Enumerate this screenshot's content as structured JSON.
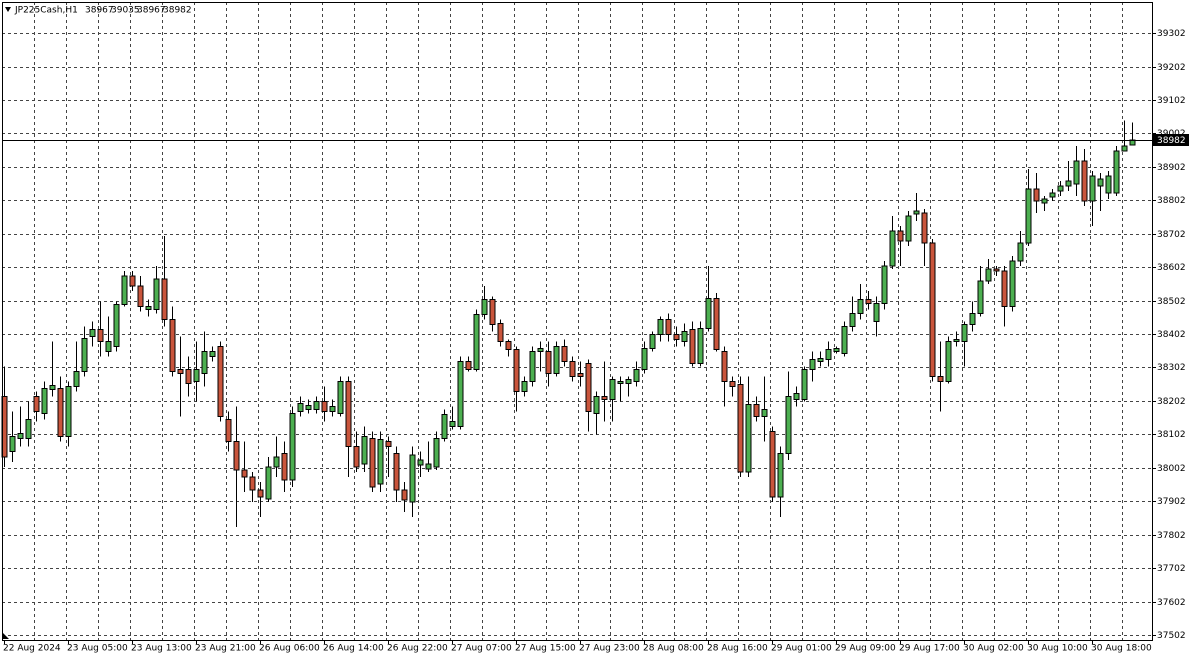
{
  "chart_data": {
    "type": "candlestick",
    "title": "JP225Cash,H1",
    "up_color": "#4caf50",
    "down_color": "#c9553c",
    "grid": true,
    "categories": [
      "22 Aug 2024",
      null,
      null,
      null,
      null,
      null,
      null,
      null,
      "23 Aug 05:00",
      null,
      null,
      null,
      null,
      null,
      null,
      null,
      "23 Aug 13:00",
      null,
      null,
      null,
      null,
      null,
      null,
      null,
      "23 Aug 21:00",
      null,
      null,
      null,
      null,
      null,
      null,
      null,
      "26 Aug 06:00",
      null,
      null,
      null,
      null,
      null,
      null,
      null,
      "26 Aug 14:00",
      null,
      null,
      null,
      null,
      null,
      null,
      null,
      "26 Aug 22:00",
      null,
      null,
      null,
      null,
      null,
      null,
      null,
      "27 Aug 07:00",
      null,
      null,
      null,
      null,
      null,
      null,
      null,
      "27 Aug 15:00",
      null,
      null,
      null,
      null,
      null,
      null,
      null,
      "27 Aug 23:00",
      null,
      null,
      null,
      null,
      null,
      null,
      null,
      "28 Aug 08:00",
      null,
      null,
      null,
      null,
      null,
      null,
      null,
      "28 Aug 16:00",
      null,
      null,
      null,
      null,
      null,
      null,
      null,
      "29 Aug 01:00",
      null,
      null,
      null,
      null,
      null,
      null,
      null,
      "29 Aug 09:00",
      null,
      null,
      null,
      null,
      null,
      null,
      null,
      "29 Aug 17:00",
      null,
      null,
      null,
      null,
      null,
      null,
      null,
      "30 Aug 02:00",
      null,
      null,
      null,
      null,
      null,
      null,
      null,
      "30 Aug 10:00",
      null,
      null,
      null,
      null,
      null,
      null,
      null,
      "30 Aug 18:00",
      null,
      null,
      null,
      null,
      null
    ],
    "open": [
      38215,
      38050,
      38089,
      38089,
      38215,
      38164,
      38236,
      38239,
      38095,
      38245,
      38290,
      38395,
      38416,
      38350,
      38365,
      38491,
      38575,
      38545,
      38476,
      38476,
      38566,
      38446,
      38296,
      38296,
      38260,
      38284,
      38335,
      38365,
      38146,
      38080,
      37996,
      37975,
      37936,
      37909,
      38005,
      38044,
      37966,
      38170,
      38176,
      38176,
      38200,
      38170,
      38164,
      38260,
      38065,
      38014,
      38089,
      37954,
      38080,
      38044,
      37936,
      37900,
      38011,
      37998,
      38005,
      38089,
      38125,
      38125,
      38320,
      38296,
      38461,
      38506,
      38434,
      38380,
      38356,
      38230,
      38260,
      38350,
      38350,
      38284,
      38365,
      38320,
      38284,
      38314,
      38164,
      38215,
      38206,
      38254,
      38254,
      38260,
      38296,
      38359,
      38401,
      38446,
      38401,
      38380,
      38416,
      38314,
      38419,
      38509,
      38350,
      38260,
      38251,
      37990,
      38191,
      38155,
      38110,
      37915,
      38044,
      38206,
      38206,
      38296,
      38320,
      38326,
      38350,
      38344,
      38425,
      38464,
      38506,
      38440,
      38494,
      38605,
      38710,
      38680,
      38761,
      38764,
      38674,
      38275,
      38260,
      38380,
      38380,
      38431,
      38464,
      38560,
      38596,
      38590,
      38485,
      38620,
      38674,
      38836,
      38794,
      38812,
      38830,
      38845,
      38851,
      38920,
      38800,
      38845,
      38824,
      38824,
      38950,
      38967
    ],
    "high": [
      38305,
      38170,
      38185,
      38200,
      38230,
      38260,
      38380,
      38275,
      38260,
      38380,
      38425,
      38440,
      38500,
      38455,
      38500,
      38590,
      38590,
      38575,
      38506,
      38605,
      38695,
      38485,
      38395,
      38335,
      38380,
      38410,
      38365,
      38380,
      38170,
      38185,
      38080,
      37990,
      37960,
      38035,
      38095,
      38080,
      38185,
      38215,
      38206,
      38215,
      38245,
      38206,
      38275,
      38275,
      38110,
      38125,
      38110,
      38110,
      38095,
      38065,
      37960,
      38065,
      38050,
      38080,
      38110,
      38176,
      38185,
      38335,
      38335,
      38476,
      38545,
      38515,
      38446,
      38386,
      38365,
      38275,
      38365,
      38380,
      38380,
      38380,
      38386,
      38335,
      38320,
      38326,
      38230,
      38320,
      38275,
      38275,
      38275,
      38320,
      38380,
      38410,
      38455,
      38464,
      38425,
      38434,
      38440,
      38440,
      38605,
      38524,
      38365,
      38275,
      38275,
      38275,
      38215,
      38275,
      38125,
      38065,
      38290,
      38245,
      38305,
      38350,
      38350,
      38380,
      38365,
      38440,
      38515,
      38551,
      38530,
      38515,
      38620,
      38755,
      38725,
      38770,
      38824,
      38776,
      38686,
      38380,
      38395,
      38410,
      38440,
      38500,
      38605,
      38626,
      38605,
      38605,
      38635,
      38710,
      38896,
      38884,
      38815,
      38836,
      38860,
      38920,
      38965,
      38956,
      38890,
      38884,
      38890,
      38965,
      39040,
      39035
    ],
    "low": [
      38005,
      38020,
      38065,
      38065,
      38140,
      38146,
      38215,
      38080,
      38065,
      38230,
      38275,
      38365,
      38335,
      38335,
      38350,
      38485,
      38530,
      38470,
      38455,
      38464,
      38425,
      38275,
      38155,
      38215,
      38200,
      38245,
      38320,
      38140,
      38050,
      37825,
      37930,
      37900,
      37855,
      37900,
      37975,
      37930,
      37945,
      38155,
      38164,
      38164,
      38140,
      38155,
      38155,
      37975,
      37990,
      37990,
      37930,
      37930,
      37975,
      37900,
      37870,
      37855,
      37975,
      37990,
      37996,
      38080,
      38116,
      38116,
      38290,
      38290,
      38446,
      38410,
      38365,
      38335,
      38170,
      38215,
      38245,
      38290,
      38245,
      38275,
      38305,
      38260,
      38245,
      38110,
      38101,
      38140,
      38140,
      38200,
      38215,
      38245,
      38284,
      38350,
      38380,
      38380,
      38365,
      38365,
      38305,
      38305,
      38410,
      38350,
      38185,
      38215,
      37975,
      37975,
      38140,
      38080,
      37900,
      37855,
      38026,
      38185,
      38200,
      38260,
      38305,
      38305,
      38344,
      38335,
      38410,
      38446,
      38476,
      38395,
      38476,
      38596,
      38605,
      38665,
      38740,
      38605,
      38260,
      38170,
      38254,
      38365,
      38305,
      38410,
      38455,
      38551,
      38575,
      38425,
      38470,
      38605,
      38665,
      38764,
      38770,
      38800,
      38815,
      38830,
      38815,
      38785,
      38725,
      38770,
      38806,
      38815,
      38950,
      38967
    ],
    "close": [
      38035,
      38095,
      38104,
      38146,
      38170,
      38239,
      38248,
      38095,
      38245,
      38290,
      38389,
      38416,
      38380,
      38380,
      38491,
      38575,
      38545,
      38485,
      38485,
      38566,
      38446,
      38290,
      38284,
      38254,
      38296,
      38350,
      38350,
      38155,
      38080,
      37996,
      37975,
      37936,
      37915,
      38005,
      38035,
      37966,
      38164,
      38194,
      38188,
      38200,
      38170,
      38185,
      38260,
      38065,
      38005,
      38095,
      37945,
      38086,
      38065,
      37936,
      37906,
      38041,
      38026,
      38014,
      38089,
      38161,
      38140,
      38320,
      38296,
      38461,
      38506,
      38431,
      38380,
      38356,
      38230,
      38260,
      38350,
      38359,
      38284,
      38365,
      38320,
      38275,
      38275,
      38170,
      38215,
      38206,
      38266,
      38260,
      38266,
      38296,
      38359,
      38401,
      38446,
      38401,
      38386,
      38410,
      38314,
      38419,
      38509,
      38356,
      38260,
      38245,
      37990,
      38191,
      38155,
      38176,
      37915,
      38044,
      38215,
      38224,
      38296,
      38326,
      38329,
      38356,
      38359,
      38425,
      38464,
      38506,
      38494,
      38494,
      38605,
      38710,
      38680,
      38755,
      38770,
      38674,
      38275,
      38260,
      38380,
      38386,
      38431,
      38464,
      38560,
      38596,
      38590,
      38485,
      38620,
      38674,
      38836,
      38800,
      38806,
      38824,
      38845,
      38860,
      38920,
      38800,
      38875,
      38866,
      38875,
      38950,
      38965,
      38982
    ],
    "ylim": [
      37487,
      39395
    ],
    "yticks": [
      37502,
      37602,
      37702,
      37802,
      37902,
      38002,
      38102,
      38202,
      38302,
      38402,
      38502,
      38602,
      38702,
      38802,
      38902,
      39002,
      39102,
      39202,
      39302
    ]
  }
}
